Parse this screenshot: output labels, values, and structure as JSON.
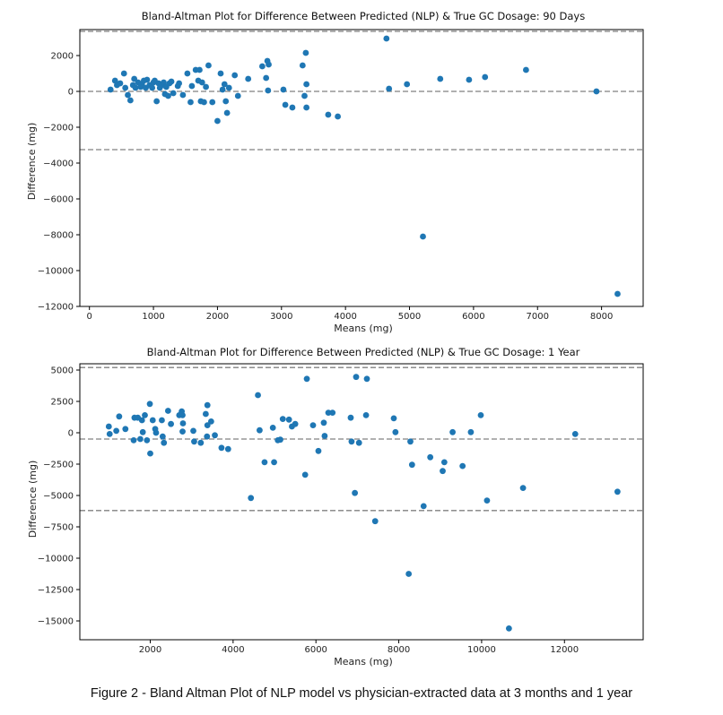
{
  "caption": "Figure 2 - Bland Altman Plot of NLP model vs physician-extracted data at 3 months and 1 year",
  "colors": {
    "point": "#1f77b4",
    "refline": "#808080",
    "axis": "#000000"
  },
  "chart_data": [
    {
      "type": "scatter",
      "title": "Bland-Altman Plot for Difference Between Predicted (NLP) & True GC Dosage: 90 Days",
      "xlabel": "Means (mg)",
      "ylabel": "Difference (mg)",
      "xlim": [
        -150,
        8650
      ],
      "ylim": [
        -12000,
        3450
      ],
      "xticks": [
        0,
        1000,
        2000,
        3000,
        4000,
        5000,
        6000,
        7000,
        8000
      ],
      "yticks": [
        -12000,
        -10000,
        -8000,
        -6000,
        -4000,
        -2000,
        0,
        2000
      ],
      "reference_lines": {
        "mean": 0,
        "upper_loa": 3350,
        "lower_loa": -3250
      },
      "points": [
        [
          330,
          100
        ],
        [
          400,
          600
        ],
        [
          430,
          350
        ],
        [
          480,
          450
        ],
        [
          540,
          1000
        ],
        [
          560,
          200
        ],
        [
          600,
          -200
        ],
        [
          640,
          -500
        ],
        [
          680,
          350
        ],
        [
          700,
          700
        ],
        [
          720,
          200
        ],
        [
          760,
          500
        ],
        [
          800,
          250
        ],
        [
          820,
          400
        ],
        [
          850,
          600
        ],
        [
          880,
          200
        ],
        [
          900,
          650
        ],
        [
          940,
          350
        ],
        [
          980,
          200
        ],
        [
          1000,
          500
        ],
        [
          1020,
          600
        ],
        [
          1050,
          -550
        ],
        [
          1080,
          450
        ],
        [
          1100,
          200
        ],
        [
          1130,
          350
        ],
        [
          1160,
          500
        ],
        [
          1180,
          -150
        ],
        [
          1200,
          250
        ],
        [
          1230,
          -250
        ],
        [
          1250,
          450
        ],
        [
          1280,
          550
        ],
        [
          1310,
          -100
        ],
        [
          1380,
          300
        ],
        [
          1400,
          450
        ],
        [
          1460,
          -200
        ],
        [
          1530,
          1000
        ],
        [
          1580,
          -600
        ],
        [
          1600,
          300
        ],
        [
          1660,
          1200
        ],
        [
          1700,
          600
        ],
        [
          1720,
          1200
        ],
        [
          1740,
          -550
        ],
        [
          1760,
          500
        ],
        [
          1790,
          -600
        ],
        [
          1820,
          250
        ],
        [
          1860,
          1450
        ],
        [
          1920,
          -600
        ],
        [
          2000,
          -1650
        ],
        [
          2050,
          1000
        ],
        [
          2080,
          100
        ],
        [
          2110,
          400
        ],
        [
          2130,
          -550
        ],
        [
          2150,
          -1200
        ],
        [
          2180,
          200
        ],
        [
          2270,
          900
        ],
        [
          2320,
          -250
        ],
        [
          2480,
          700
        ],
        [
          2700,
          1400
        ],
        [
          2760,
          750
        ],
        [
          2780,
          1700
        ],
        [
          2800,
          1500
        ],
        [
          2790,
          50
        ],
        [
          3030,
          100
        ],
        [
          3060,
          -750
        ],
        [
          3170,
          -900
        ],
        [
          3330,
          1450
        ],
        [
          3360,
          -250
        ],
        [
          3380,
          2150
        ],
        [
          3390,
          400
        ],
        [
          3390,
          -900
        ],
        [
          3730,
          -1300
        ],
        [
          3880,
          -1400
        ],
        [
          4640,
          2950
        ],
        [
          4680,
          150
        ],
        [
          4960,
          400
        ],
        [
          5210,
          -8100
        ],
        [
          5480,
          700
        ],
        [
          5930,
          650
        ],
        [
          6180,
          800
        ],
        [
          6820,
          1200
        ],
        [
          7920,
          0
        ],
        [
          8250,
          -11300
        ]
      ]
    },
    {
      "type": "scatter",
      "title": "Bland-Altman Plot for Difference Between Predicted (NLP) & True GC Dosage: 1 Year",
      "xlabel": "Means (mg)",
      "ylabel": "Difference (mg)",
      "xlim": [
        300,
        13900
      ],
      "ylim": [
        -16500,
        5500
      ],
      "xticks": [
        2000,
        4000,
        6000,
        8000,
        10000,
        12000
      ],
      "ytick_labels": [
        "5000",
        "2500",
        "0",
        "−2500",
        "−5000",
        "−7500",
        "−10000",
        "−12500",
        "−15000"
      ],
      "yticks": [
        5000,
        2500,
        0,
        -2500,
        -5000,
        -7500,
        -10000,
        -12500,
        -15000
      ],
      "reference_lines": {
        "mean": -500,
        "upper_loa": 5200,
        "lower_loa": -6200
      },
      "points": [
        [
          1000,
          500
        ],
        [
          1020,
          -100
        ],
        [
          1180,
          150
        ],
        [
          1250,
          1300
        ],
        [
          1400,
          300
        ],
        [
          1600,
          -600
        ],
        [
          1620,
          1200
        ],
        [
          1700,
          1200
        ],
        [
          1760,
          -500
        ],
        [
          1800,
          1000
        ],
        [
          1820,
          50
        ],
        [
          1870,
          1400
        ],
        [
          1920,
          -600
        ],
        [
          1990,
          2300
        ],
        [
          2000,
          -1650
        ],
        [
          2060,
          1000
        ],
        [
          2120,
          300
        ],
        [
          2140,
          0
        ],
        [
          2280,
          1000
        ],
        [
          2300,
          -300
        ],
        [
          2330,
          -800
        ],
        [
          2430,
          1750
        ],
        [
          2500,
          700
        ],
        [
          2700,
          1400
        ],
        [
          2760,
          1700
        ],
        [
          2780,
          1400
        ],
        [
          2780,
          100
        ],
        [
          2790,
          750
        ],
        [
          3040,
          150
        ],
        [
          3060,
          -700
        ],
        [
          3220,
          -800
        ],
        [
          3340,
          1500
        ],
        [
          3370,
          -300
        ],
        [
          3380,
          2200
        ],
        [
          3380,
          600
        ],
        [
          3470,
          900
        ],
        [
          3560,
          -200
        ],
        [
          3720,
          -1200
        ],
        [
          3880,
          -1300
        ],
        [
          4430,
          -5200
        ],
        [
          4600,
          3000
        ],
        [
          4640,
          200
        ],
        [
          4760,
          -2350
        ],
        [
          4960,
          400
        ],
        [
          4990,
          -2350
        ],
        [
          5080,
          -600
        ],
        [
          5140,
          -550
        ],
        [
          5200,
          1100
        ],
        [
          5350,
          1050
        ],
        [
          5420,
          500
        ],
        [
          5500,
          700
        ],
        [
          5740,
          -3350
        ],
        [
          5780,
          4300
        ],
        [
          5930,
          600
        ],
        [
          6060,
          -1450
        ],
        [
          6190,
          800
        ],
        [
          6210,
          -250
        ],
        [
          6300,
          1600
        ],
        [
          6400,
          1600
        ],
        [
          6840,
          1200
        ],
        [
          6860,
          -700
        ],
        [
          6940,
          -4800
        ],
        [
          6970,
          4450
        ],
        [
          7040,
          -800
        ],
        [
          7210,
          1400
        ],
        [
          7230,
          4300
        ],
        [
          7430,
          -7050
        ],
        [
          7880,
          1150
        ],
        [
          7920,
          50
        ],
        [
          8240,
          -11250
        ],
        [
          8280,
          -700
        ],
        [
          8320,
          -2550
        ],
        [
          8600,
          -5850
        ],
        [
          8760,
          -1950
        ],
        [
          9060,
          -3050
        ],
        [
          9100,
          -2350
        ],
        [
          9300,
          50
        ],
        [
          9540,
          -2650
        ],
        [
          9740,
          50
        ],
        [
          9980,
          1400
        ],
        [
          10130,
          -5400
        ],
        [
          10660,
          -15600
        ],
        [
          11000,
          -4400
        ],
        [
          12260,
          -100
        ],
        [
          13280,
          -4700
        ]
      ]
    }
  ]
}
